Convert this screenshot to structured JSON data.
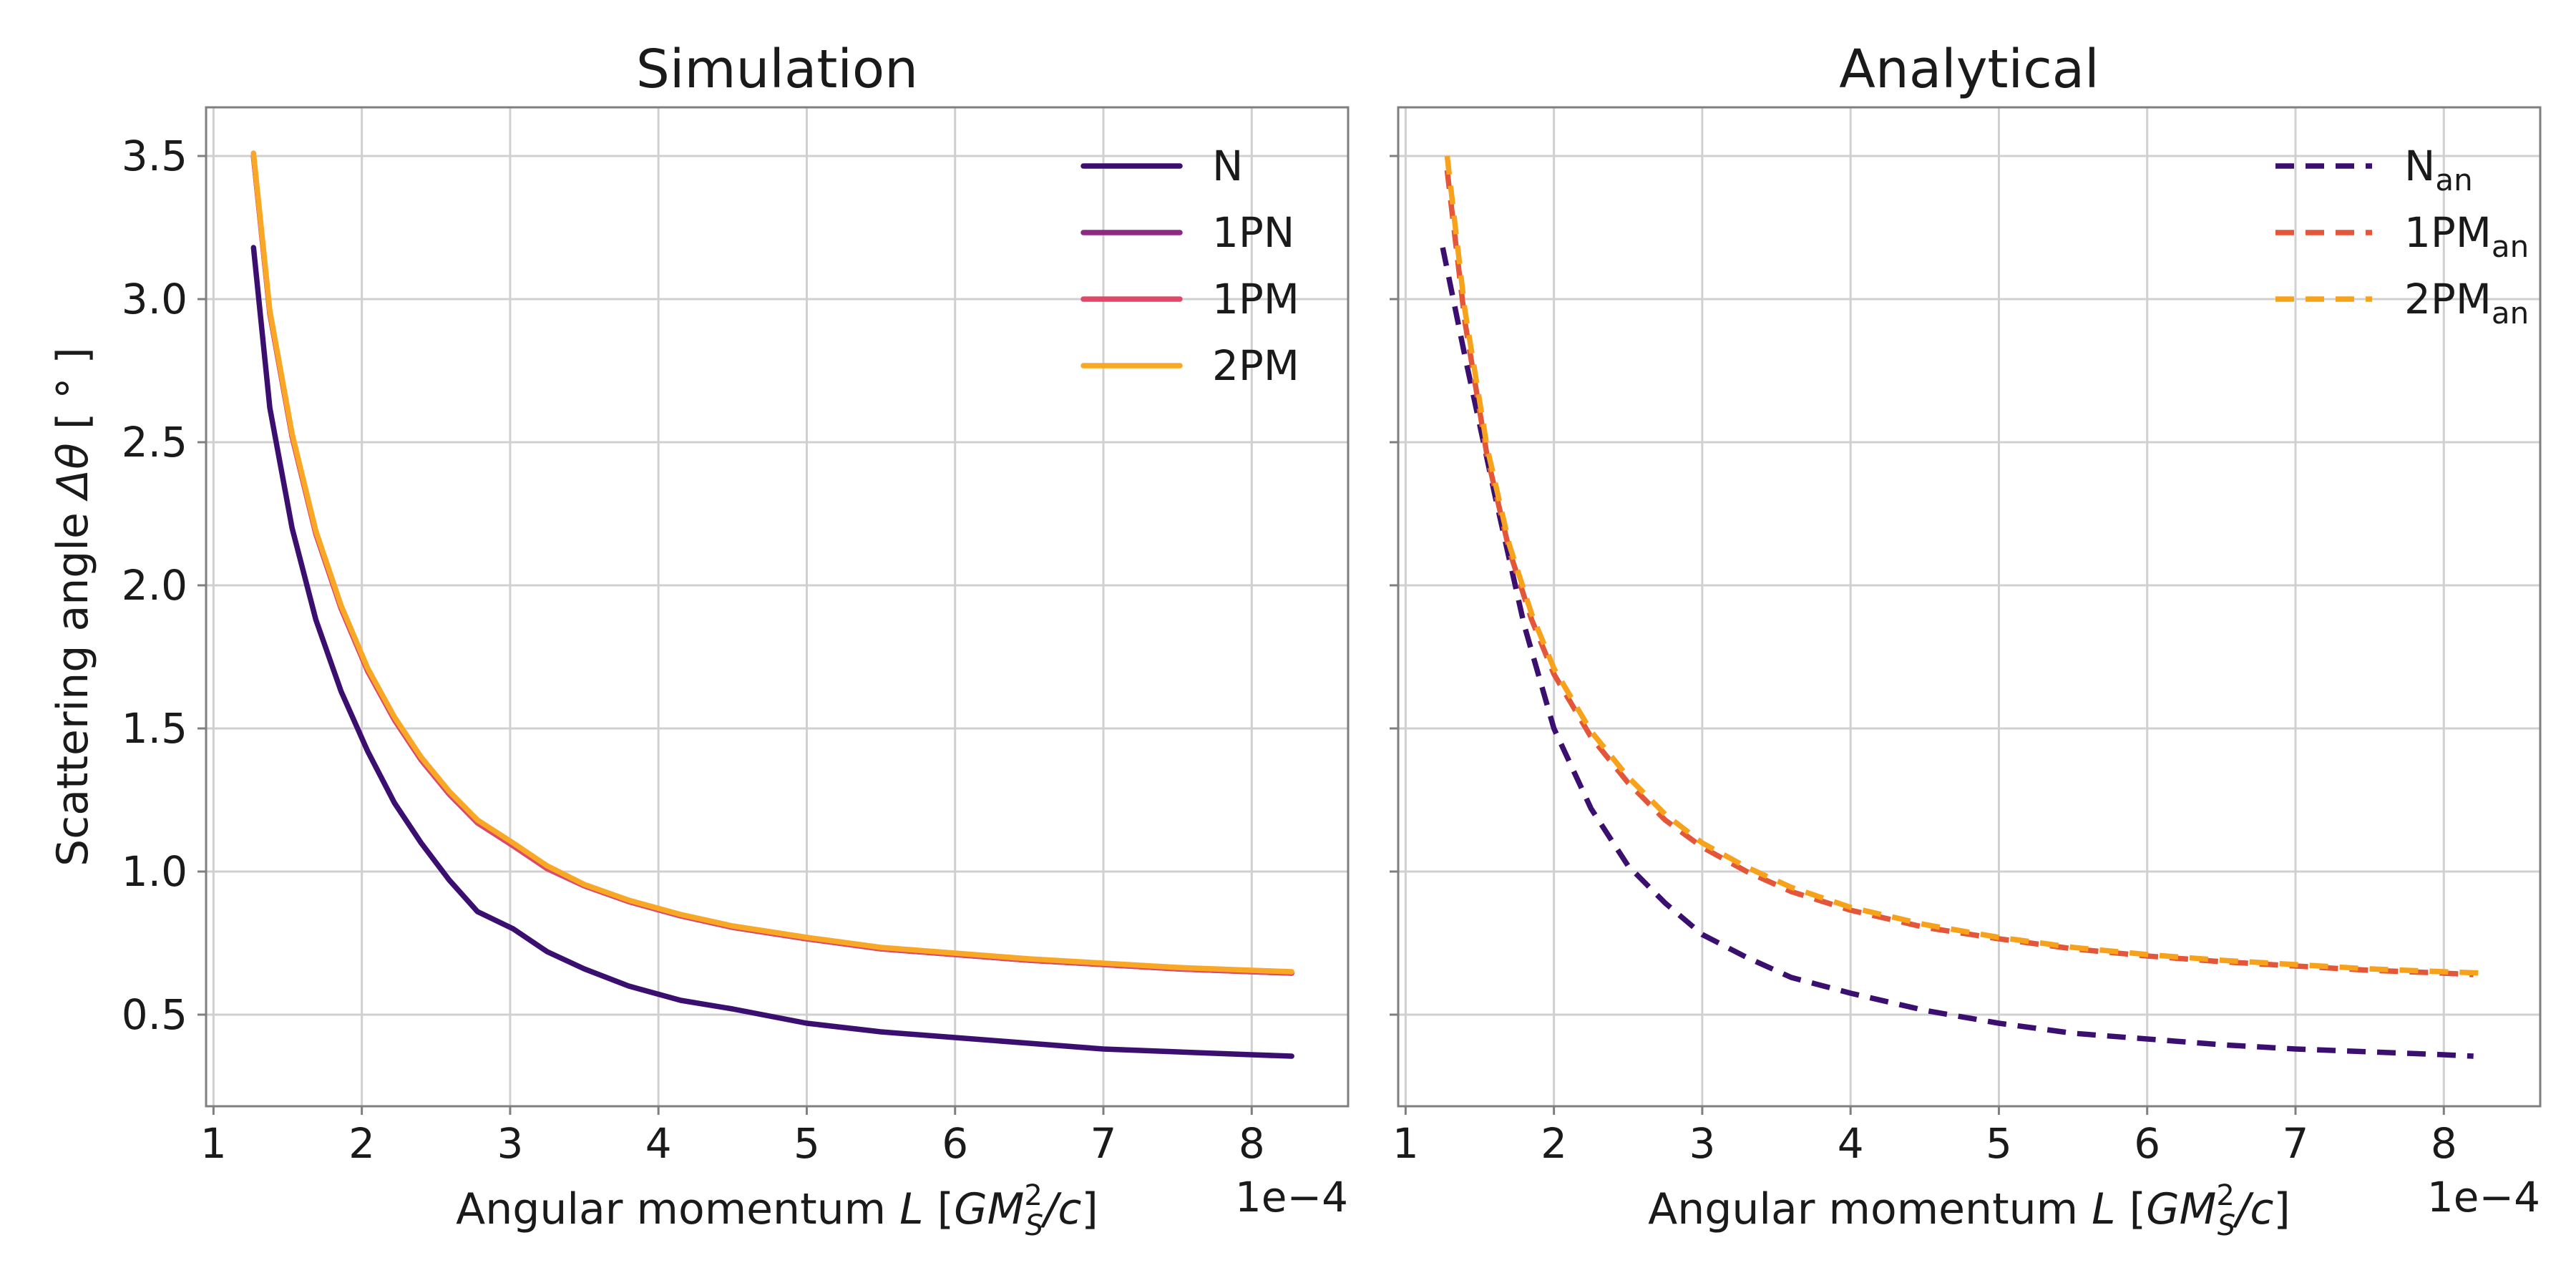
{
  "colors": {
    "N": "#3b0f70",
    "1PN": "#8c2981",
    "1PM": "#de4968",
    "2PM": "#f9a825",
    "N_an": "#3b0f70",
    "1PM_an": "#e4563a",
    "2PM_an": "#f7a21b"
  },
  "chart_data": [
    {
      "type": "line",
      "title": "Simulation",
      "ylabel": "Scattering angle Δθ [ ° ]",
      "xlabel": "Angular momentum L [GM²_S / c]",
      "x_multiplier": "1e−4",
      "xlim": [
        0.95,
        8.65
      ],
      "ylim": [
        0.18,
        3.67
      ],
      "xticks": [
        "1",
        "2",
        "3",
        "4",
        "5",
        "6",
        "7",
        "8"
      ],
      "yticks": [
        "0.5",
        "1.0",
        "1.5",
        "2.0",
        "2.5",
        "3.0",
        "3.5"
      ],
      "grid": true,
      "legend_position": "top-right",
      "series": [
        {
          "name": "N",
          "style": "solid",
          "color_key": "N",
          "x": [
            1.27,
            1.38,
            1.53,
            1.69,
            1.86,
            2.04,
            2.22,
            2.4,
            2.59,
            2.78,
            3.02,
            3.25,
            3.5,
            3.8,
            4.15,
            4.5,
            5.0,
            5.5,
            6.0,
            6.5,
            7.0,
            7.5,
            8.0,
            8.27
          ],
          "y": [
            3.18,
            2.62,
            2.2,
            1.88,
            1.63,
            1.42,
            1.24,
            1.1,
            0.97,
            0.86,
            0.8,
            0.72,
            0.66,
            0.6,
            0.55,
            0.52,
            0.47,
            0.44,
            0.42,
            0.4,
            0.38,
            0.37,
            0.36,
            0.355
          ]
        },
        {
          "name": "1PN",
          "style": "solid",
          "color_key": "1PN",
          "x": [
            1.27,
            1.38,
            1.53,
            1.69,
            1.86,
            2.04,
            2.22,
            2.4,
            2.59,
            2.78,
            3.02,
            3.25,
            3.5,
            3.8,
            4.15,
            4.5,
            5.0,
            5.5,
            6.0,
            6.5,
            7.0,
            7.5,
            8.0,
            8.27
          ],
          "y": [
            3.5,
            2.95,
            2.52,
            2.18,
            1.92,
            1.7,
            1.53,
            1.39,
            1.27,
            1.17,
            1.09,
            1.01,
            0.95,
            0.895,
            0.845,
            0.805,
            0.765,
            0.73,
            0.71,
            0.69,
            0.675,
            0.66,
            0.65,
            0.645
          ]
        },
        {
          "name": "1PM",
          "style": "solid",
          "color_key": "1PM",
          "x": [
            1.27,
            1.38,
            1.53,
            1.69,
            1.86,
            2.04,
            2.22,
            2.4,
            2.59,
            2.78,
            3.02,
            3.25,
            3.5,
            3.8,
            4.15,
            4.5,
            5.0,
            5.5,
            6.0,
            6.5,
            7.0,
            7.5,
            8.0,
            8.27
          ],
          "y": [
            3.5,
            2.95,
            2.52,
            2.18,
            1.92,
            1.7,
            1.53,
            1.39,
            1.27,
            1.17,
            1.09,
            1.01,
            0.95,
            0.895,
            0.845,
            0.805,
            0.765,
            0.73,
            0.71,
            0.69,
            0.675,
            0.66,
            0.65,
            0.645
          ]
        },
        {
          "name": "2PM",
          "style": "solid",
          "color_key": "2PM",
          "x": [
            1.27,
            1.38,
            1.53,
            1.69,
            1.86,
            2.04,
            2.22,
            2.4,
            2.59,
            2.78,
            3.02,
            3.25,
            3.5,
            3.8,
            4.15,
            4.5,
            5.0,
            5.5,
            6.0,
            6.5,
            7.0,
            7.5,
            8.0,
            8.27
          ],
          "y": [
            3.51,
            2.96,
            2.53,
            2.19,
            1.93,
            1.71,
            1.54,
            1.4,
            1.28,
            1.18,
            1.1,
            1.02,
            0.955,
            0.9,
            0.85,
            0.81,
            0.77,
            0.735,
            0.715,
            0.695,
            0.68,
            0.665,
            0.655,
            0.65
          ]
        }
      ]
    },
    {
      "type": "line",
      "title": "Analytical",
      "ylabel": "",
      "xlabel": "Angular momentum L [GM²_S / c]",
      "x_multiplier": "1e−4",
      "xlim": [
        0.95,
        8.65
      ],
      "ylim": [
        0.18,
        3.67
      ],
      "xticks": [
        "1",
        "2",
        "3",
        "4",
        "5",
        "6",
        "7",
        "8"
      ],
      "yticks": [],
      "grid": true,
      "legend_position": "top-right",
      "series": [
        {
          "name": "N",
          "subscript": "an",
          "style": "dashed",
          "color_key": "N_an",
          "x": [
            1.25,
            1.4,
            1.6,
            1.8,
            2.0,
            2.25,
            2.5,
            2.75,
            3.0,
            3.3,
            3.6,
            4.0,
            4.5,
            5.0,
            5.5,
            6.0,
            6.5,
            7.0,
            7.5,
            8.0,
            8.2
          ],
          "y": [
            3.18,
            2.8,
            2.32,
            1.86,
            1.5,
            1.22,
            1.02,
            0.89,
            0.78,
            0.7,
            0.63,
            0.575,
            0.515,
            0.47,
            0.435,
            0.415,
            0.395,
            0.38,
            0.37,
            0.36,
            0.355
          ]
        },
        {
          "name": "1PM",
          "subscript": "an",
          "style": "dashed",
          "color_key": "1PM_an",
          "x": [
            1.28,
            1.4,
            1.55,
            1.7,
            1.85,
            2.0,
            2.25,
            2.5,
            2.75,
            3.0,
            3.3,
            3.6,
            4.0,
            4.5,
            5.0,
            5.5,
            6.0,
            6.5,
            7.0,
            7.5,
            8.0,
            8.2
          ],
          "y": [
            3.45,
            2.92,
            2.45,
            2.12,
            1.88,
            1.69,
            1.47,
            1.31,
            1.18,
            1.085,
            1.0,
            0.93,
            0.865,
            0.805,
            0.765,
            0.73,
            0.705,
            0.685,
            0.67,
            0.655,
            0.645,
            0.64
          ]
        },
        {
          "name": "2PM",
          "subscript": "an",
          "style": "dashed",
          "color_key": "2PM_an",
          "x": [
            1.28,
            1.4,
            1.55,
            1.7,
            1.85,
            2.0,
            2.25,
            2.5,
            2.75,
            3.0,
            3.3,
            3.6,
            4.0,
            4.5,
            5.0,
            5.5,
            6.0,
            6.5,
            7.0,
            7.5,
            8.0,
            8.27
          ],
          "y": [
            3.5,
            2.96,
            2.48,
            2.14,
            1.9,
            1.71,
            1.49,
            1.33,
            1.2,
            1.1,
            1.015,
            0.945,
            0.875,
            0.815,
            0.77,
            0.735,
            0.71,
            0.69,
            0.675,
            0.66,
            0.65,
            0.645
          ]
        }
      ]
    }
  ]
}
